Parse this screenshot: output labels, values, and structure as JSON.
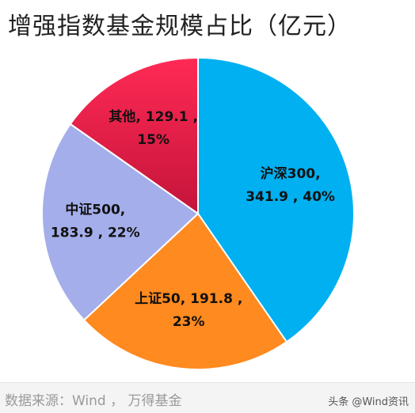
{
  "chart_data": {
    "type": "pie",
    "title": "增强指数基金规模占比（亿元）",
    "slices": [
      {
        "name": "沪深300",
        "value": 341.9,
        "percent": 40,
        "color": "#00b0f0",
        "label_lines": [
          "沪深300,",
          "341.9 , 40%"
        ]
      },
      {
        "name": "上证50",
        "value": 191.8,
        "percent": 23,
        "color": "#ff8a1f",
        "label_lines": [
          "上证50, 191.8 ,",
          "23%"
        ]
      },
      {
        "name": "中证500",
        "value": 183.9,
        "percent": 22,
        "color": "#a4aeea",
        "label_lines": [
          "中证500,",
          "183.9 , 22%"
        ]
      },
      {
        "name": "其他",
        "value": 129.1,
        "percent": 15,
        "color": "#e8234c",
        "label_lines": [
          "其他, 129.1 ,",
          "15%"
        ]
      }
    ]
  },
  "footer": {
    "source": "数据来源：Wind ， 万得基金",
    "watermark": "头条 @Wind资讯"
  }
}
